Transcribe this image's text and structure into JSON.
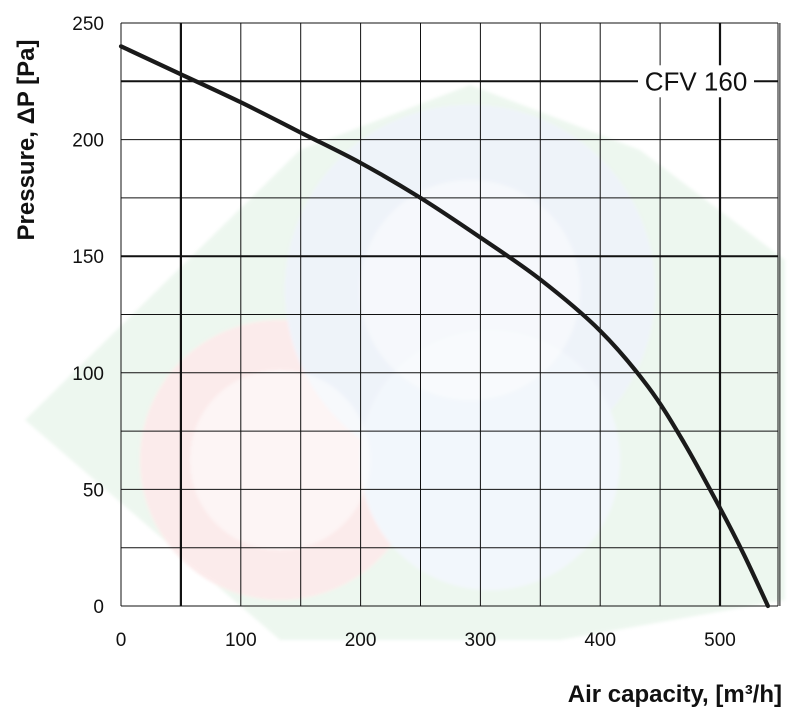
{
  "chart_data": {
    "type": "line",
    "title": "",
    "xlabel": "Air capacity, [m³/h]",
    "ylabel": "Pressure, ΔP [Pa]",
    "xlim": [
      0,
      550
    ],
    "ylim": [
      0,
      250
    ],
    "x_ticks": [
      0,
      100,
      200,
      300,
      400,
      500
    ],
    "y_ticks": [
      0,
      50,
      100,
      150,
      200,
      250
    ],
    "x_tick_labels": [
      "0",
      "100",
      "200",
      "300",
      "400",
      "500"
    ],
    "y_tick_labels": [
      "0",
      "50",
      "100",
      "150",
      "200",
      "250"
    ],
    "grid": true,
    "grid_minor_x_step": 50,
    "grid_minor_y_step": 25,
    "series": [
      {
        "name": "CFV 160",
        "color": "#1a1a1a",
        "x": [
          0,
          50,
          100,
          150,
          200,
          250,
          300,
          350,
          400,
          440,
          470,
          500,
          520,
          540
        ],
        "y": [
          240,
          228,
          216,
          203,
          190,
          175,
          158,
          140,
          118,
          94,
          70,
          42,
          22,
          0
        ]
      }
    ],
    "accent_gridlines": {
      "x": [
        50,
        500
      ],
      "y": [
        150,
        225
      ]
    }
  }
}
